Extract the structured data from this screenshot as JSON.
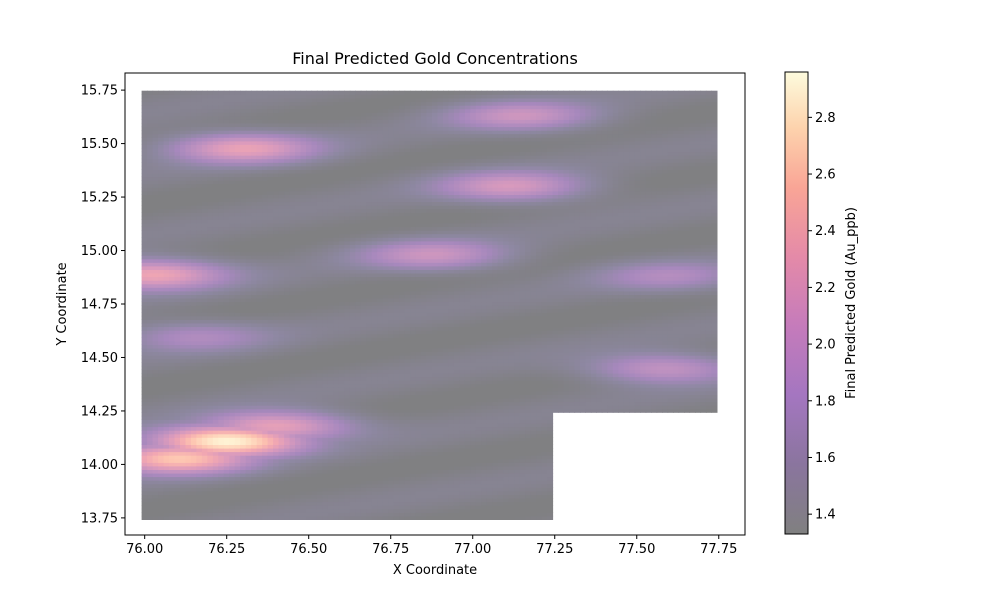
{
  "chart_data": {
    "type": "heatmap",
    "title": "Final Predicted Gold Concentrations",
    "xlabel": "X Coordinate",
    "ylabel": "Y Coordinate",
    "xlim": [
      75.94,
      77.83
    ],
    "ylim": [
      13.67,
      15.83
    ],
    "xticks": [
      "76.00",
      "76.25",
      "76.50",
      "76.75",
      "77.00",
      "77.25",
      "77.50",
      "77.75"
    ],
    "yticks": [
      "13.75",
      "14.00",
      "14.25",
      "14.50",
      "14.75",
      "15.00",
      "15.25",
      "15.50",
      "15.75"
    ],
    "grid_spacing": 0.0167,
    "grid_x_range": [
      76.0,
      77.75
    ],
    "grid_y_range": [
      13.75,
      15.75
    ],
    "missing_region": {
      "x": [
        77.25,
        77.75
      ],
      "y": [
        13.75,
        14.25
      ]
    },
    "colorbar": {
      "label": "Final Predicted Gold (Au_ppb)",
      "range": [
        1.33,
        2.96
      ],
      "ticks": [
        "1.4",
        "1.6",
        "1.8",
        "2.0",
        "2.2",
        "2.4",
        "2.6",
        "2.8"
      ],
      "colormap": "magma",
      "alpha": 0.5
    },
    "hotspots": [
      {
        "x": 76.25,
        "y": 14.11,
        "value": 2.95
      },
      {
        "x": 76.1,
        "y": 14.03,
        "value": 2.6
      },
      {
        "x": 76.4,
        "y": 14.18,
        "value": 2.3
      },
      {
        "x": 76.02,
        "y": 14.89,
        "value": 2.35
      },
      {
        "x": 76.3,
        "y": 15.48,
        "value": 2.25
      },
      {
        "x": 76.88,
        "y": 14.98,
        "value": 2.0
      },
      {
        "x": 77.12,
        "y": 15.3,
        "value": 2.1
      },
      {
        "x": 77.15,
        "y": 15.63,
        "value": 2.0
      },
      {
        "x": 77.58,
        "y": 14.45,
        "value": 2.0
      },
      {
        "x": 76.15,
        "y": 14.6,
        "value": 1.8
      },
      {
        "x": 77.6,
        "y": 14.88,
        "value": 1.8
      }
    ]
  }
}
